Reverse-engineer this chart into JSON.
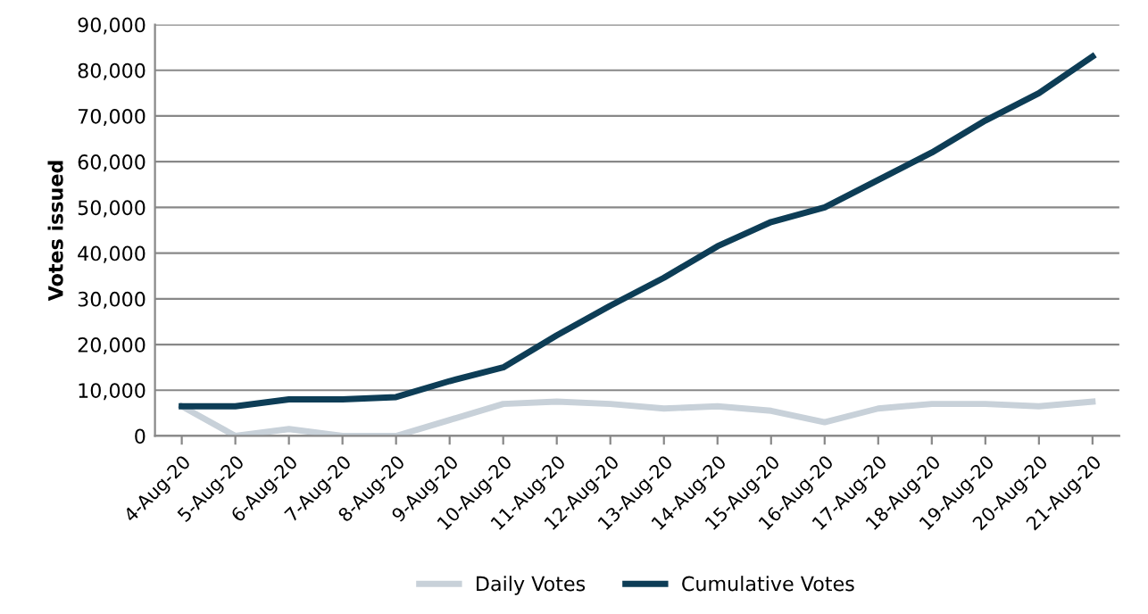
{
  "chart_data": {
    "type": "line",
    "ylabel": "Votes issued",
    "categories": [
      "4-Aug-20",
      "5-Aug-20",
      "6-Aug-20",
      "7-Aug-20",
      "8-Aug-20",
      "9-Aug-20",
      "10-Aug-20",
      "11-Aug-20",
      "12-Aug-20",
      "13-Aug-20",
      "14-Aug-20",
      "15-Aug-20",
      "16-Aug-20",
      "17-Aug-20",
      "18-Aug-20",
      "19-Aug-20",
      "20-Aug-20",
      "21-Aug-20"
    ],
    "series": [
      {
        "name": "Daily Votes",
        "color": "#c8d1d9",
        "values": [
          6500,
          0,
          1500,
          0,
          0,
          3500,
          7000,
          7500,
          7000,
          6000,
          6500,
          5500,
          3000,
          6000,
          7000,
          7000,
          6500,
          7500
        ]
      },
      {
        "name": "Cumulative Votes",
        "color": "#0d3d56",
        "values": [
          6500,
          6500,
          8000,
          8000,
          8500,
          12000,
          15000,
          22000,
          28500,
          34600,
          41500,
          46800,
          50000,
          56000,
          62000,
          69000,
          75000,
          83000
        ]
      }
    ],
    "ylim": [
      0,
      90000
    ],
    "yticks": [
      {
        "value": 0,
        "label": "0"
      },
      {
        "value": 10000,
        "label": "10,000"
      },
      {
        "value": 20000,
        "label": "20,000"
      },
      {
        "value": 30000,
        "label": "30,000"
      },
      {
        "value": 40000,
        "label": "40,000"
      },
      {
        "value": 50000,
        "label": "50,000"
      },
      {
        "value": 60000,
        "label": "60,000"
      },
      {
        "value": 70000,
        "label": "70,000"
      },
      {
        "value": 80000,
        "label": "80,000"
      },
      {
        "value": 90000,
        "label": "90,000"
      }
    ],
    "grid": "y",
    "legend": "bottom"
  }
}
